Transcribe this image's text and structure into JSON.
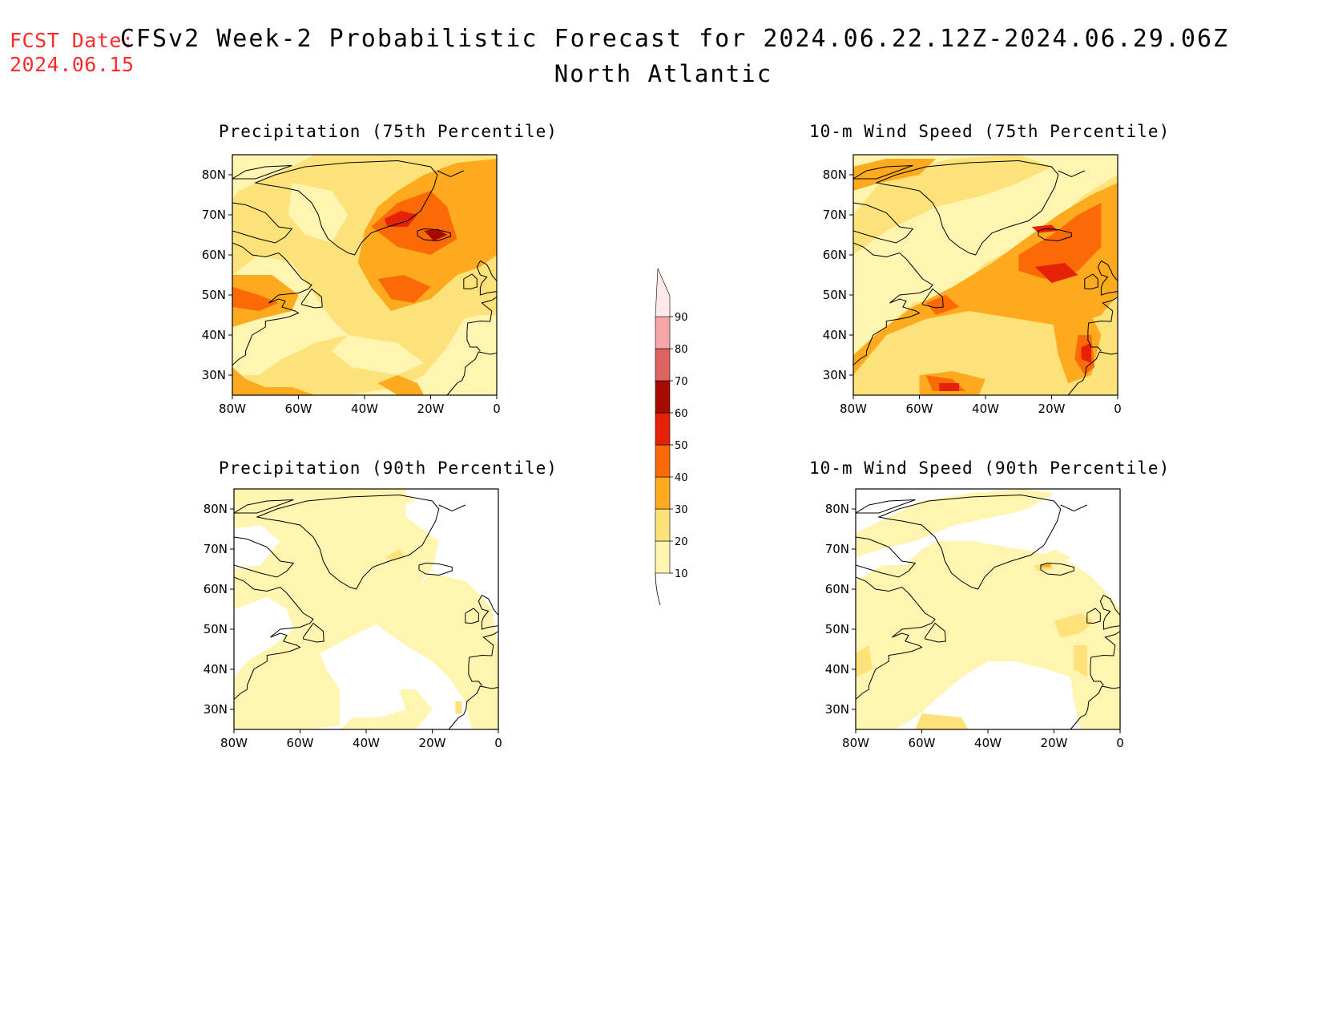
{
  "header": {
    "fcst_label": "FCST Date:",
    "fcst_date": "2024.06.15",
    "title": "CFSv2 Week-2 Probabilistic Forecast for 2024.06.22.12Z-2024.06.29.06Z",
    "subtitle": "North Atlantic"
  },
  "axes": {
    "lon_labels": [
      "80W",
      "60W",
      "40W",
      "20W",
      "0"
    ],
    "lat_labels": [
      "30N",
      "40N",
      "50N",
      "60N",
      "70N",
      "80N"
    ]
  },
  "panels": [
    {
      "id": "precip75",
      "title": "Precipitation (75th Percentile)"
    },
    {
      "id": "wind75",
      "title": "10-m Wind Speed (75th Percentile)"
    },
    {
      "id": "precip90",
      "title": "Precipitation (90th Percentile)"
    },
    {
      "id": "wind90",
      "title": "10-m Wind Speed (90th Percentile)"
    }
  ],
  "colorbar": {
    "labels": [
      "10",
      "20",
      "30",
      "40",
      "50",
      "60",
      "70",
      "80",
      "90"
    ],
    "colors": [
      "#fff5b0",
      "#fde27a",
      "#fdaa1e",
      "#fb6a06",
      "#e52205",
      "#a60a00",
      "#e06363",
      "#f5a6a6",
      "#ffe8ea"
    ]
  },
  "colors": {
    "fcst_text": "#ff2a2a",
    "c10": "#fff5b0",
    "c20": "#fde27a",
    "c30": "#fdaa1e",
    "c40": "#fb6a06",
    "c50": "#e52205",
    "c60": "#a60a00"
  }
}
